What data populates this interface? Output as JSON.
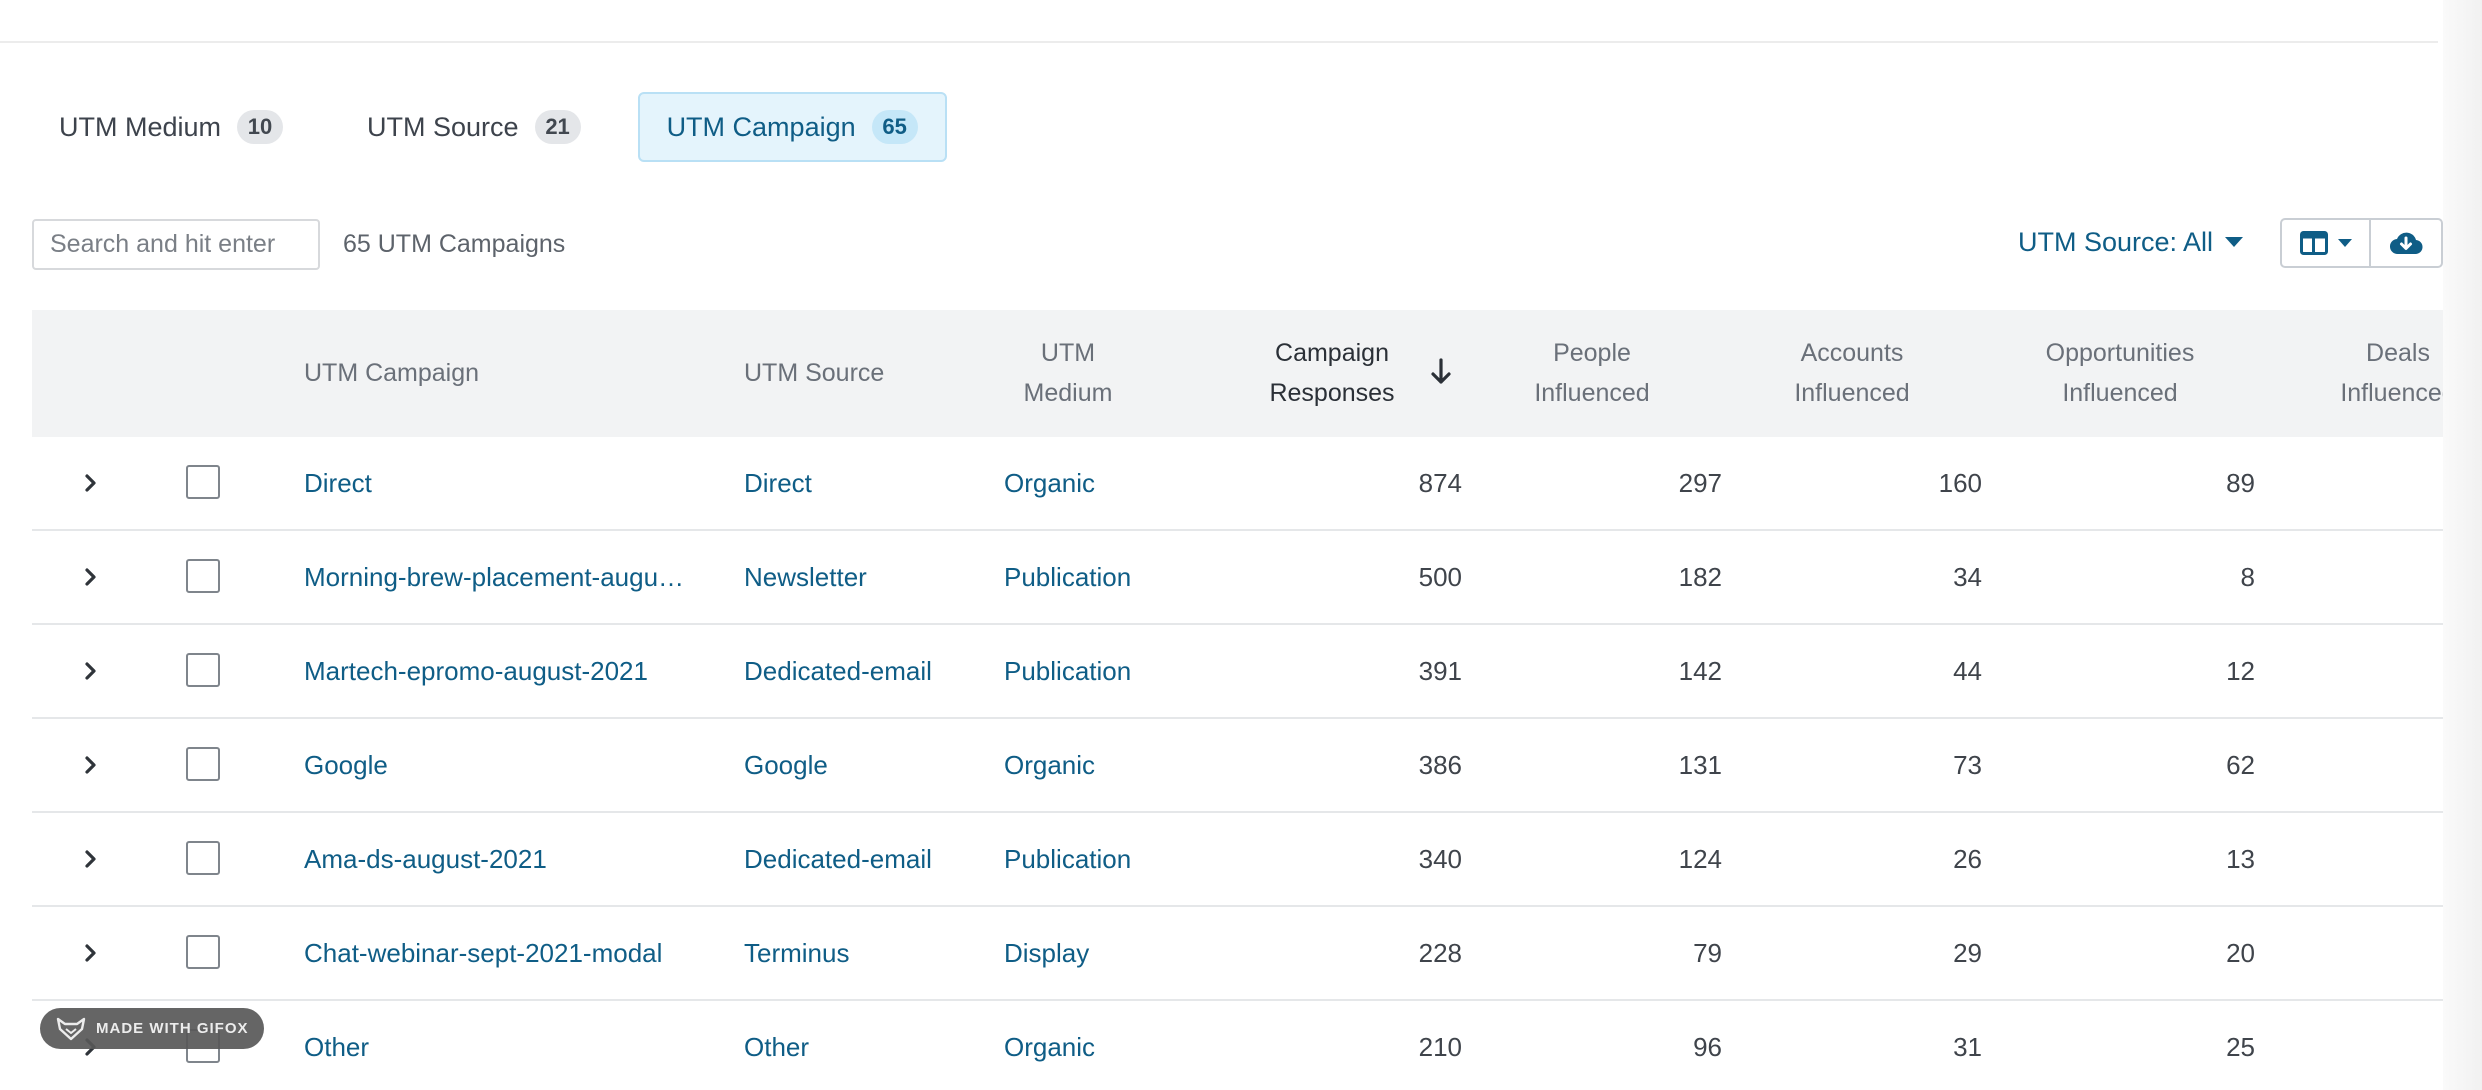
{
  "tabs": [
    {
      "label": "UTM Medium",
      "count": "10",
      "active": false
    },
    {
      "label": "UTM Source",
      "count": "21",
      "active": false
    },
    {
      "label": "UTM Campaign",
      "count": "65",
      "active": true
    }
  ],
  "toolbar": {
    "search_placeholder": "Search and hit enter",
    "count_label": "65 UTM Campaigns",
    "source_filter_label": "UTM Source: All",
    "columns_icon": "columns-icon",
    "download_icon": "cloud-download-icon"
  },
  "table": {
    "headers": {
      "campaign": "UTM Campaign",
      "source": "UTM Source",
      "medium_line1": "UTM",
      "medium_line2": "Medium",
      "responses_line1": "Campaign",
      "responses_line2": "Responses",
      "people_line1": "People",
      "people_line2": "Influenced",
      "accounts_line1": "Accounts",
      "accounts_line2": "Influenced",
      "opps_line1": "Opportunities",
      "opps_line2": "Influenced",
      "deals_line1": "Deals",
      "deals_line2": "Influenced"
    },
    "sort": {
      "column": "Campaign Responses",
      "direction": "descending"
    },
    "rows": [
      {
        "campaign": "Direct",
        "source": "Direct",
        "medium": "Organic",
        "responses": "874",
        "people": "297",
        "accounts": "160",
        "opps": "89"
      },
      {
        "campaign": "Morning-brew-placement-augu…",
        "source": "Newsletter",
        "medium": "Publication",
        "responses": "500",
        "people": "182",
        "accounts": "34",
        "opps": "8"
      },
      {
        "campaign": "Martech-epromo-august-2021",
        "source": "Dedicated-email",
        "medium": "Publication",
        "responses": "391",
        "people": "142",
        "accounts": "44",
        "opps": "12"
      },
      {
        "campaign": "Google",
        "source": "Google",
        "medium": "Organic",
        "responses": "386",
        "people": "131",
        "accounts": "73",
        "opps": "62"
      },
      {
        "campaign": "Ama-ds-august-2021",
        "source": "Dedicated-email",
        "medium": "Publication",
        "responses": "340",
        "people": "124",
        "accounts": "26",
        "opps": "13"
      },
      {
        "campaign": "Chat-webinar-sept-2021-modal",
        "source": "Terminus",
        "medium": "Display",
        "responses": "228",
        "people": "79",
        "accounts": "29",
        "opps": "20"
      },
      {
        "campaign": "Other",
        "source": "Other",
        "medium": "Organic",
        "responses": "210",
        "people": "96",
        "accounts": "31",
        "opps": "25"
      }
    ]
  },
  "watermark": {
    "label": "MADE WITH GIFOX"
  },
  "colors": {
    "accent": "#0f5d86",
    "tab_active_bg": "#e4f4fc",
    "header_bg": "#f2f3f4"
  }
}
